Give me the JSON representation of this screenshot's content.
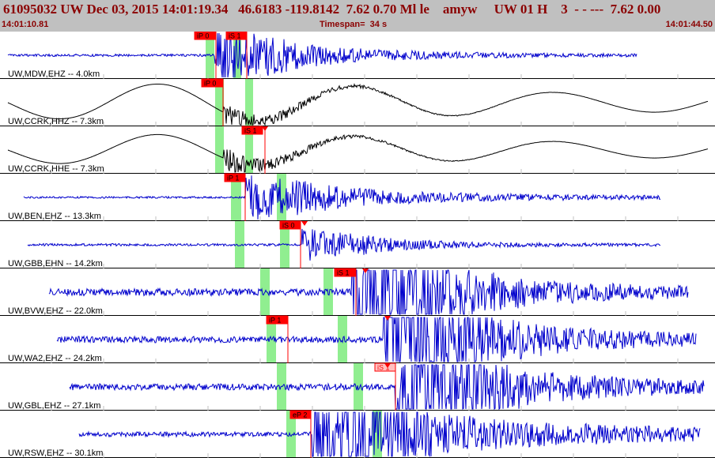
{
  "header": {
    "title": "61095032 UW Dec 03, 2015 14:01:19.34   46.6183 -119.8142  7.62 0.70 Ml le    amyw     UW 01 H    3  - - ---  7.62 0.00",
    "start_time": "14:01:10.81",
    "timespan": "Timespan=  34 s",
    "end_time": "14:01:44.50"
  },
  "colors": {
    "header_bg": "#c0c0c0",
    "header_text": "#8b0000",
    "trace_blue": "#0000cc",
    "trace_black": "#000000",
    "pick_red": "#ff0000",
    "pick_pink": "#ffc0c0",
    "window_green": "#90ee90",
    "tick_gray": "#c0c0c0"
  },
  "traces": [
    {
      "label": "UW,MDW,EHZ -- 4.0km",
      "color": "blue",
      "picks": [
        {
          "label": "iP 0",
          "style": "red"
        },
        {
          "label": "iS 1",
          "style": "red"
        }
      ]
    },
    {
      "label": "UW,CCRK,HHZ -- 7.3km",
      "color": "black",
      "picks": [
        {
          "label": "iP 0",
          "style": "red"
        }
      ]
    },
    {
      "label": "UW,CCRK,HHE -- 7.3km",
      "color": "black",
      "picks": [
        {
          "label": "iS 1",
          "style": "red"
        }
      ]
    },
    {
      "label": "UW,BEN,EHZ -- 13.3km",
      "color": "blue",
      "picks": [
        {
          "label": "iP 1",
          "style": "red"
        }
      ]
    },
    {
      "label": "UW,GBB,EHN -- 14.2km",
      "color": "blue",
      "picks": [
        {
          "label": "iS 0",
          "style": "red"
        }
      ]
    },
    {
      "label": "UW,BVW,EHZ -- 22.0km",
      "color": "blue",
      "picks": [
        {
          "label": "iS 1",
          "style": "red"
        }
      ]
    },
    {
      "label": "UW,WA2,EHZ -- 24.2km",
      "color": "blue",
      "picks": [
        {
          "label": "iP 1",
          "style": "red"
        }
      ]
    },
    {
      "label": "UW,GBL,EHZ -- 27.1km",
      "color": "blue",
      "picks": [
        {
          "label": "iS 1",
          "style": "pink"
        }
      ]
    },
    {
      "label": "UW,RSW,EHZ -- 30.1km",
      "color": "blue",
      "picks": [
        {
          "label": "eP 2",
          "style": "red"
        }
      ]
    }
  ]
}
